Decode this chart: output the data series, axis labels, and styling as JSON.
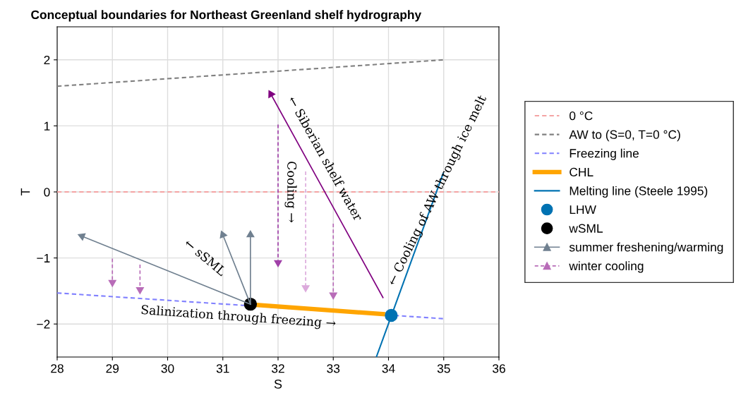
{
  "chart_data": {
    "type": "line",
    "title": "Conceptual boundaries for Northeast Greenland shelf hydrography",
    "xlabel": "S",
    "ylabel": "T",
    "xlim": [
      28,
      36
    ],
    "ylim": [
      -2.5,
      2.5
    ],
    "xticks": [
      28,
      29,
      30,
      31,
      32,
      33,
      34,
      35,
      36
    ],
    "yticks": [
      {
        "value": -2,
        "label": "−2"
      },
      {
        "value": -1,
        "label": "−1"
      },
      0,
      1,
      2
    ],
    "grid": true,
    "legend": "right",
    "series": [
      {
        "name": "0 °C",
        "color": "#f4a3a3",
        "line_style": "dashed",
        "x": [
          28,
          36
        ],
        "values": [
          0,
          0
        ]
      },
      {
        "name": "AW to (S=0, T=0 °C)",
        "color": "#808080",
        "line_style": "dashed",
        "x": [
          28,
          35
        ],
        "values": [
          1.6,
          2.0
        ]
      },
      {
        "name": "Freezing line",
        "color": "#8080ff",
        "line_style": "dashed",
        "x": [
          28,
          35
        ],
        "values": [
          -1.53,
          -1.92
        ]
      },
      {
        "name": "CHL",
        "color": "#ffa500",
        "line_style": "solid",
        "x": [
          31.6,
          33.9
        ],
        "values": [
          -1.71,
          -1.85
        ]
      },
      {
        "name": "Melting line (Steele 1995)",
        "color": "#0072b2",
        "line_style": "solid",
        "x": [
          33.78,
          34.99
        ],
        "values": [
          -2.5,
          0.28
        ]
      },
      {
        "name": "LHW",
        "type": "scatter",
        "color": "#0072b2",
        "marker": "circle",
        "x": [
          34.05
        ],
        "values": [
          -1.87
        ]
      },
      {
        "name": "wSML",
        "type": "scatter",
        "color": "#000000",
        "marker": "circle",
        "x": [
          31.5
        ],
        "values": [
          -1.7
        ]
      },
      {
        "name": "summer freshening/warming",
        "color": "#708090",
        "line_style": "solid",
        "marker": "triangle",
        "x": [
          31.5,
          28.45
        ],
        "values": [
          -1.7,
          -0.67
        ]
      },
      {
        "color": "#708090",
        "line_style": "solid",
        "marker": "triangle",
        "x": [
          31.5,
          31.0
        ],
        "values": [
          -1.7,
          -0.65
        ]
      },
      {
        "color": "#708090",
        "line_style": "solid",
        "marker": "triangle",
        "x": [
          31.5,
          31.5
        ],
        "values": [
          -1.7,
          -0.65
        ]
      },
      {
        "name": "winter cooling",
        "color": "#b86cb8",
        "line_style": "dashed",
        "marker": "triangle",
        "x": [
          29,
          29
        ],
        "values": [
          -1.01,
          -1.37
        ]
      },
      {
        "color": "#b86cb8",
        "line_style": "dashed",
        "marker": "triangle",
        "x": [
          29.5,
          29.5
        ],
        "values": [
          -1.1,
          -1.48
        ]
      },
      {
        "color": "#a040a8",
        "line_style": "dashed",
        "marker": "triangle",
        "x": [
          32,
          32
        ],
        "values": [
          1.02,
          -1.07
        ]
      },
      {
        "color": "#dcaadc",
        "line_style": "dashed",
        "marker": "triangle",
        "x": [
          32.5,
          32.5
        ],
        "values": [
          0.31,
          -1.45
        ]
      },
      {
        "color": "#b86cb8",
        "line_style": "dashed",
        "marker": "triangle",
        "x": [
          33,
          33
        ],
        "values": [
          -0.48,
          -1.56
        ]
      },
      {
        "color": "#800080",
        "line_style": "solid",
        "marker": "triangle",
        "x": [
          33.9,
          31.87
        ],
        "values": [
          -1.6,
          1.48
        ]
      }
    ],
    "annotations": [
      "← Siberian shelf water",
      "Cooling →",
      "← sSML",
      "Salinization through freezing →",
      "← Cooling of AW through ice melt"
    ]
  }
}
